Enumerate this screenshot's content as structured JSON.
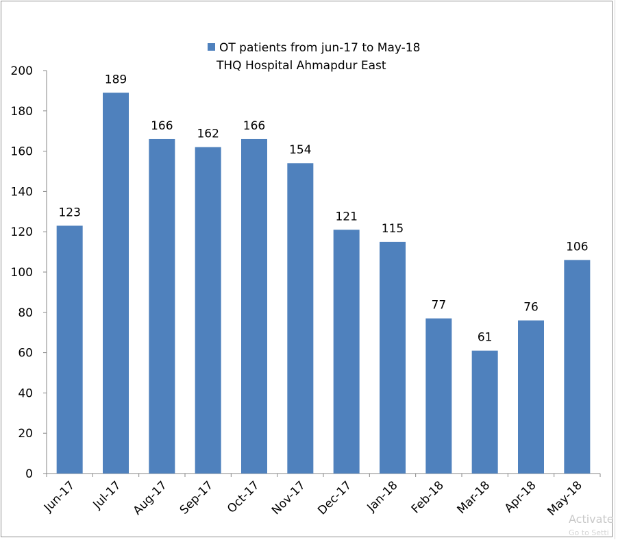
{
  "chart_data": {
    "type": "bar",
    "categories": [
      "Jun-17",
      "Jul-17",
      "Aug-17",
      "Sep-17",
      "Oct-17",
      "Nov-17",
      "Dec-17",
      "Jan-18",
      "Feb-18",
      "Mar-18",
      "Apr-18",
      "May-18"
    ],
    "series": [
      {
        "name": "OT patients from jun-17 to May-18 THQ Hospital Ahmapdur East",
        "values": [
          123,
          189,
          166,
          162,
          166,
          154,
          121,
          115,
          77,
          61,
          76,
          106
        ]
      }
    ],
    "legend_line1": "OT patients from jun-17 to May-18",
    "legend_line2": "THQ Hospital Ahmapdur East",
    "legend_position": "top",
    "ylim": [
      0,
      200
    ],
    "yticks": [
      0,
      20,
      40,
      60,
      80,
      100,
      120,
      140,
      160,
      180,
      200
    ],
    "grid": false,
    "bar_color": "#4f81bd",
    "data_labels": true
  },
  "watermark": {
    "line1": "Activate",
    "line2": "Go to Setti"
  }
}
